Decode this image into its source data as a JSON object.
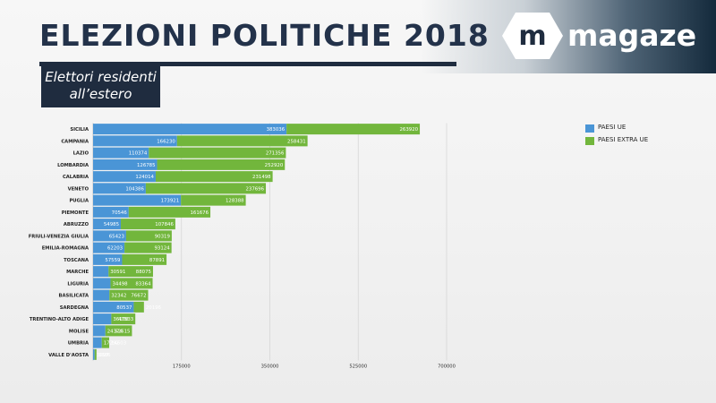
{
  "header": {
    "title": "ELEZIONI POLITICHE 2018",
    "subtitle_line1": "Elettori residenti",
    "subtitle_line2": "all’estero",
    "brand_mark": "m",
    "brand_name": "magaze"
  },
  "colors": {
    "ue": "#4a95d6",
    "extra_ue": "#72b63c",
    "title": "#23324a",
    "dark_panel": "#1f2c3f"
  },
  "chart_data": {
    "type": "bar",
    "orientation": "horizontal",
    "stacked": true,
    "categories": [
      "SICILIA",
      "CAMPANIA",
      "LAZIO",
      "LOMBARDIA",
      "CALABRIA",
      "VENETO",
      "PUGLIA",
      "PIEMONTE",
      "ABRUZZO",
      "FRIULI-VENEZIA GIULIA",
      "EMILIA-ROMAGNA",
      "TOSCANA",
      "MARCHE",
      "LIGURIA",
      "BASILICATA",
      "SARDEGNA",
      "TRENTINO-ALTO ADIGE",
      "MOLISE",
      "UMBRIA",
      "VALLE D'AOSTA"
    ],
    "series": [
      {
        "name": "PAESI UE",
        "color": "#4a95d6",
        "values": [
          383036,
          166230,
          110374,
          126785,
          124014,
          104386,
          173921,
          70546,
          54985,
          65423,
          62203,
          57559,
          30591,
          34498,
          32342,
          80537,
          36108,
          24374,
          17292,
          3097
        ],
        "labels": [
          "383036",
          "166230",
          "110374",
          "126785",
          "124014",
          "104386",
          "173921",
          "70546",
          "54985",
          "65423",
          "62203",
          "57559",
          "30591",
          "34498",
          "32342",
          "80537",
          "36108",
          "24374",
          "17292",
          "3097"
        ]
      },
      {
        "name": "PAESI EXTRA UE",
        "color": "#72b63c",
        "values": [
          263920,
          258431,
          271356,
          252920,
          231498,
          237696,
          128388,
          161676,
          107846,
          90319,
          93124,
          87891,
          88075,
          83364,
          76672,
          20196,
          47533,
          52615,
          14603,
          3686
        ],
        "labels": [
          "263920",
          "258431",
          "271356",
          "252920",
          "231498",
          "237696",
          "128388",
          "161676",
          "107846",
          "90319",
          "93124",
          "87891",
          "88075",
          "83364",
          "76672",
          "20196",
          "47533",
          "52615",
          "14603",
          "3686"
        ]
      }
    ],
    "xlim": [
      0,
      700000
    ],
    "xticks": [
      175000,
      350000,
      525000,
      700000
    ],
    "xtick_labels": [
      "175000",
      "350000",
      "525000",
      "700000"
    ],
    "grid": true,
    "legend_position": "top-right",
    "xlabel": "",
    "ylabel": ""
  }
}
